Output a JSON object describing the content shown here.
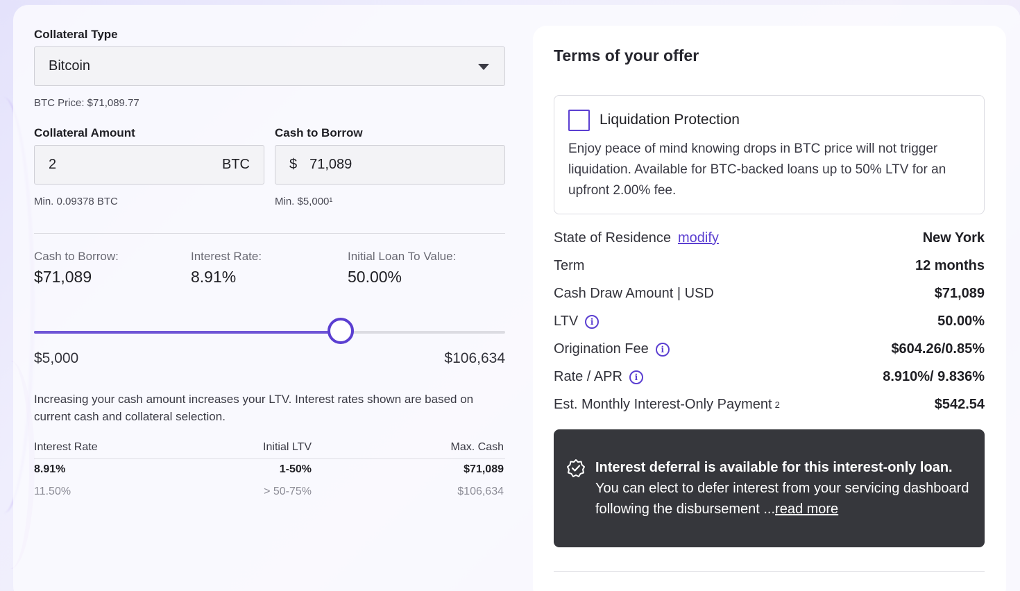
{
  "collateral_type": {
    "label": "Collateral Type",
    "selected": "Bitcoin",
    "price_note": "BTC Price: $71,089.77"
  },
  "collateral_amount": {
    "label": "Collateral Amount",
    "value": "2",
    "unit": "BTC",
    "min_note": "Min. 0.09378 BTC"
  },
  "cash_to_borrow": {
    "label": "Cash to Borrow",
    "currency": "$",
    "value": "71,089",
    "min_note": "Min. $5,000¹"
  },
  "summary": {
    "cash_label": "Cash to Borrow:",
    "cash_value": "$71,089",
    "rate_label": "Interest Rate:",
    "rate_value": "8.91%",
    "ltv_label": "Initial Loan To Value:",
    "ltv_value": "50.00%"
  },
  "slider": {
    "min_label": "$5,000",
    "max_label": "$106,634",
    "min": 5000,
    "max": 106634,
    "value": 71089
  },
  "explanation": "Increasing your cash amount increases your LTV. Interest rates shown are based on current cash and collateral selection.",
  "rate_table": {
    "headers": [
      "Interest Rate",
      "Initial LTV",
      "Max. Cash"
    ],
    "rows": [
      [
        "8.91%",
        "1-50%",
        "$71,089"
      ],
      [
        "11.50%",
        "> 50-75%",
        "$106,634"
      ]
    ]
  },
  "offer": {
    "title": "Terms of your offer",
    "protection": {
      "title": "Liquidation Protection",
      "checked": false,
      "description": "Enjoy peace of mind knowing drops in BTC price will not trigger liquidation. Available for BTC-backed loans up to 50% LTV for an upfront 2.00% fee."
    },
    "residence": {
      "label": "State of Residence",
      "link": "modify",
      "value": "New York"
    },
    "term": {
      "label": "Term",
      "value": "12 months"
    },
    "cash_draw": {
      "label": "Cash Draw Amount | USD",
      "value": "$71,089"
    },
    "ltv": {
      "label": "LTV",
      "value": "50.00%"
    },
    "origination": {
      "label": "Origination Fee",
      "value": "$604.26/0.85%"
    },
    "rate_apr": {
      "label": "Rate / APR",
      "value": "8.910%/ 9.836%"
    },
    "monthly": {
      "label": "Est. Monthly Interest-Only Payment",
      "footnote": "2",
      "value": "$542.54"
    },
    "deferral": {
      "bold": "Interest deferral is available for this interest-only loan.",
      "text": "You can elect to defer interest from your servicing dashboard following the disbursement ...",
      "link": "read more"
    }
  },
  "icons": {
    "dropdown": "caret-down-icon",
    "info": "info-circle-icon",
    "badge": "verified-badge-icon"
  },
  "colors": {
    "accent": "#5b3fd1",
    "slider_fill": "#6f55d6",
    "dark_box": "#36373c"
  }
}
